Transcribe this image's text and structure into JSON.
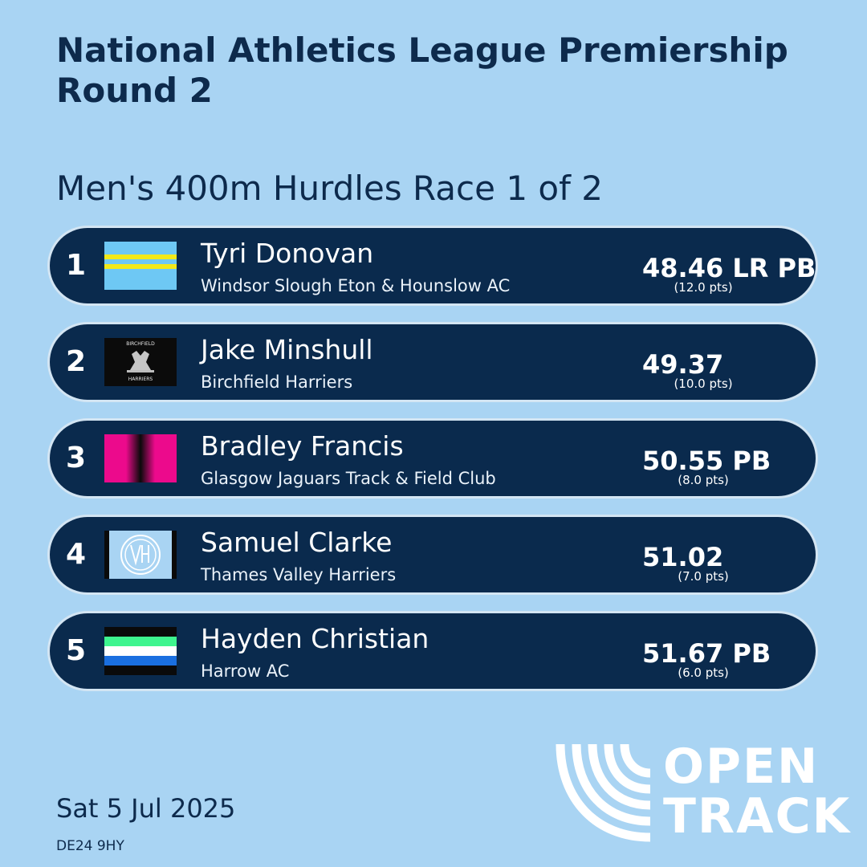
{
  "header": {
    "title": "National Athletics League Premiership Round 2",
    "event": "Men's 400m Hurdles Race 1 of 2"
  },
  "results": [
    {
      "position": "1",
      "name": "Tyri Donovan",
      "club": "Windsor Slough Eton & Hounslow AC",
      "time": "48.46 LR PB",
      "points": "(12.0 pts)",
      "flag": "wseh-flag"
    },
    {
      "position": "2",
      "name": "Jake Minshull",
      "club": "Birchfield Harriers",
      "time": "49.37",
      "points": "(10.0 pts)",
      "flag": "birchfield-badge",
      "badge_top": "BIRCHFIELD",
      "badge_bottom": "HARRIERS"
    },
    {
      "position": "3",
      "name": "Bradley Francis",
      "club": "Glasgow Jaguars Track & Field Club",
      "time": "50.55 PB",
      "points": "(8.0 pts)",
      "flag": "glasgow-jaguars-flag"
    },
    {
      "position": "4",
      "name": "Samuel Clarke",
      "club": "Thames Valley Harriers",
      "time": "51.02",
      "points": "(7.0 pts)",
      "flag": "tvh-badge"
    },
    {
      "position": "5",
      "name": "Hayden Christian",
      "club": "Harrow AC",
      "time": "51.67 PB",
      "points": "(6.0 pts)",
      "flag": "harrow-flag"
    }
  ],
  "footer": {
    "date": "Sat 5 Jul 2025",
    "postcode": "DE24 9HY",
    "logo_line1": "OPEN",
    "logo_line2": "TRACK"
  },
  "colors": {
    "background": "#a9d4f3",
    "row": "#0a2a4d",
    "title": "#0d2a4c"
  }
}
